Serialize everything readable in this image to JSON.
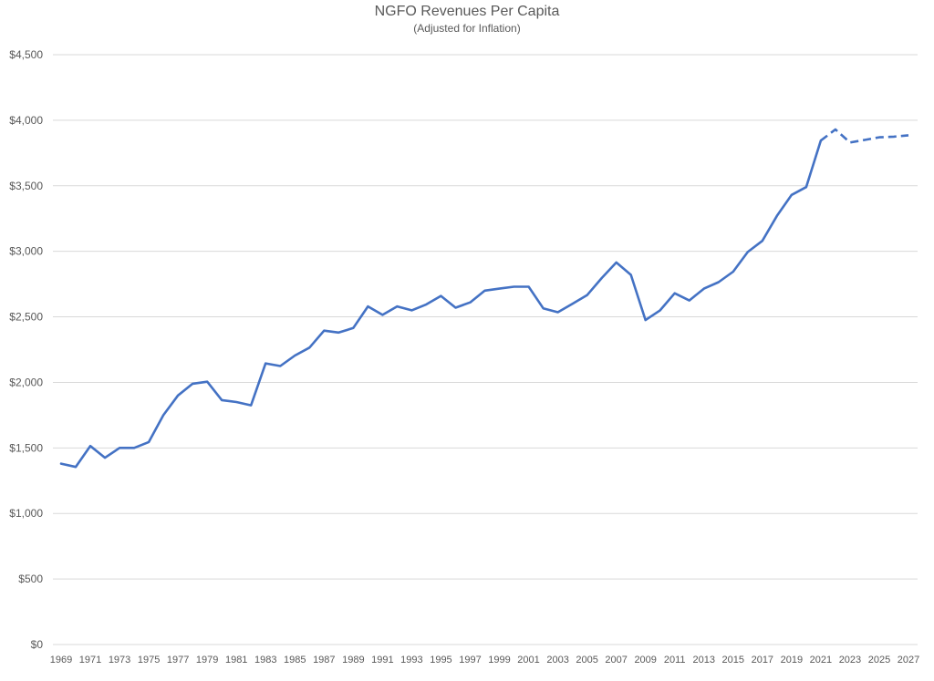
{
  "chart_data": {
    "type": "line",
    "title": "NGFO Revenues Per Capita",
    "subtitle": "(Adjusted for Inflation)",
    "xlabel": "",
    "ylabel": "",
    "ylim": [
      0,
      4500
    ],
    "ytick_values": [
      0,
      500,
      1000,
      1500,
      2000,
      2500,
      3000,
      3500,
      4000,
      4500
    ],
    "ytick_labels": [
      "$0",
      "$500",
      "$1,000",
      "$1,500",
      "$2,000",
      "$2,500",
      "$3,000",
      "$3,500",
      "$4,000",
      "$4,500"
    ],
    "xtick_labels": [
      "1969",
      "1971",
      "1973",
      "1975",
      "1977",
      "1979",
      "1981",
      "1983",
      "1985",
      "1987",
      "1989",
      "1991",
      "1993",
      "1995",
      "1997",
      "1999",
      "2001",
      "2003",
      "2005",
      "2007",
      "2009",
      "2011",
      "2013",
      "2015",
      "2017",
      "2019",
      "2021",
      "2023",
      "2025",
      "2027"
    ],
    "grid": true,
    "legend": "none",
    "series_color": "#4472C4",
    "series": [
      {
        "style": "solid",
        "x": [
          1969,
          1970,
          1971,
          1972,
          1973,
          1974,
          1975,
          1976,
          1977,
          1978,
          1979,
          1980,
          1981,
          1982,
          1983,
          1984,
          1985,
          1986,
          1987,
          1988,
          1989,
          1990,
          1991,
          1992,
          1993,
          1994,
          1995,
          1996,
          1997,
          1998,
          1999,
          2000,
          2001,
          2002,
          2003,
          2004,
          2005,
          2006,
          2007,
          2008,
          2009,
          2010,
          2011,
          2012,
          2013,
          2014,
          2015,
          2016,
          2017,
          2018,
          2019,
          2020,
          2021
        ],
        "values": [
          1380,
          1355,
          1515,
          1425,
          1500,
          1500,
          1545,
          1750,
          1900,
          1990,
          2005,
          1865,
          1850,
          1825,
          2145,
          2125,
          2205,
          2265,
          2395,
          2380,
          2415,
          2580,
          2515,
          2580,
          2550,
          2595,
          2660,
          2570,
          2610,
          2700,
          2715,
          2730,
          2730,
          2565,
          2535,
          2600,
          2665,
          2795,
          2915,
          2820,
          2475,
          2550,
          2680,
          2625,
          2715,
          2765,
          2845,
          2995,
          3080,
          3270,
          3430,
          3490,
          3845
        ]
      },
      {
        "style": "dashed",
        "x": [
          2021,
          2022,
          2023,
          2024,
          2025,
          2026,
          2027
        ],
        "values": [
          3845,
          3930,
          3830,
          3850,
          3870,
          3875,
          3885
        ]
      }
    ]
  }
}
